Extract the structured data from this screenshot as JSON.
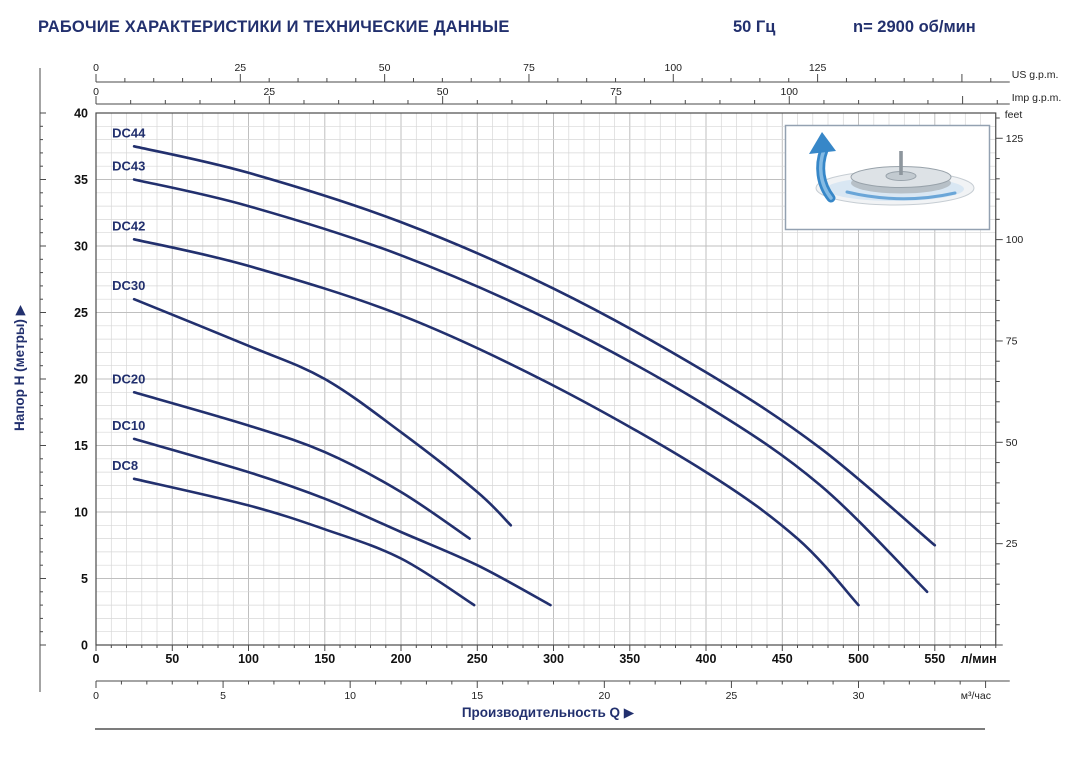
{
  "header": {
    "title": "РАБОЧИЕ ХАРАКТЕРИСТИКИ И ТЕХНИЧЕСКИЕ  ДАННЫЕ",
    "frequency": "50 Гц",
    "speed": "n= 2900 об/мин"
  },
  "chart_data": {
    "type": "line",
    "pointer": "▶",
    "curve_color": "#22306e",
    "grid": true,
    "x_axis": {
      "label": "Производительность Q",
      "primary_unit": "л/мин",
      "primary_ticks": [
        0,
        50,
        100,
        150,
        200,
        250,
        300,
        350,
        400,
        450,
        500,
        550
      ],
      "secondary_unit": "м³/час",
      "secondary_ticks": [
        0,
        5,
        10,
        15,
        20,
        25,
        30
      ],
      "us_gpm_label": "US g.p.m.",
      "us_gpm_ticks": [
        0,
        25,
        50,
        75,
        100,
        125
      ],
      "imp_gpm_label": "Imp g.p.m.",
      "imp_gpm_ticks": [
        0,
        25,
        50,
        75,
        100
      ],
      "xlim_l_min": [
        0,
        590
      ]
    },
    "y_axis": {
      "label": "Напор H (метры)",
      "unit_right": "feet",
      "meters_ticks": [
        0,
        5,
        10,
        15,
        20,
        25,
        30,
        35,
        40
      ],
      "feet_ticks": [
        25,
        50,
        75,
        100,
        125
      ],
      "ylim_m": [
        0,
        40
      ]
    },
    "series": [
      {
        "name": "DC44",
        "points": [
          [
            25,
            37.5
          ],
          [
            100,
            35.5
          ],
          [
            200,
            31.8
          ],
          [
            300,
            26.8
          ],
          [
            400,
            20.5
          ],
          [
            475,
            14.8
          ],
          [
            550,
            7.5
          ]
        ]
      },
      {
        "name": "DC43",
        "points": [
          [
            25,
            35
          ],
          [
            100,
            33
          ],
          [
            200,
            29.3
          ],
          [
            300,
            24.3
          ],
          [
            400,
            18
          ],
          [
            475,
            12
          ],
          [
            545,
            4
          ]
        ]
      },
      {
        "name": "DC42",
        "points": [
          [
            25,
            30.5
          ],
          [
            100,
            28.5
          ],
          [
            200,
            24.8
          ],
          [
            300,
            19.5
          ],
          [
            400,
            13
          ],
          [
            460,
            8
          ],
          [
            500,
            3
          ]
        ]
      },
      {
        "name": "DC30",
        "points": [
          [
            25,
            26
          ],
          [
            100,
            22.5
          ],
          [
            150,
            20
          ],
          [
            200,
            16
          ],
          [
            250,
            11.5
          ],
          [
            272,
            9
          ]
        ]
      },
      {
        "name": "DC20",
        "points": [
          [
            25,
            19
          ],
          [
            100,
            16.5
          ],
          [
            150,
            14.5
          ],
          [
            200,
            11.5
          ],
          [
            245,
            8
          ]
        ]
      },
      {
        "name": "DC10",
        "points": [
          [
            25,
            15.5
          ],
          [
            100,
            13
          ],
          [
            150,
            11
          ],
          [
            200,
            8.5
          ],
          [
            250,
            6
          ],
          [
            298,
            3
          ]
        ]
      },
      {
        "name": "DC8",
        "points": [
          [
            25,
            12.5
          ],
          [
            100,
            10.5
          ],
          [
            150,
            8.7
          ],
          [
            200,
            6.5
          ],
          [
            248,
            3
          ]
        ]
      }
    ]
  },
  "inset": {
    "description": "pump impeller with upward flow arrow"
  }
}
